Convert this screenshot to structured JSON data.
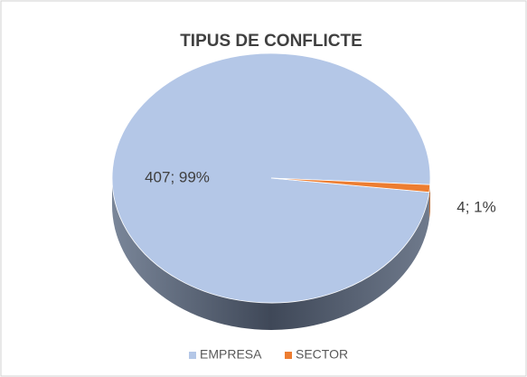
{
  "chart_data": {
    "type": "pie",
    "title": "TIPUS DE CONFLICTE",
    "categories": [
      "EMPRESA",
      "SECTOR"
    ],
    "values": [
      407,
      4
    ],
    "value_labels": [
      "407; 99%",
      "4; 1%"
    ],
    "colors": [
      "#b4c7e7",
      "#ed7d31"
    ],
    "legend": "bottom",
    "three_d": true
  }
}
